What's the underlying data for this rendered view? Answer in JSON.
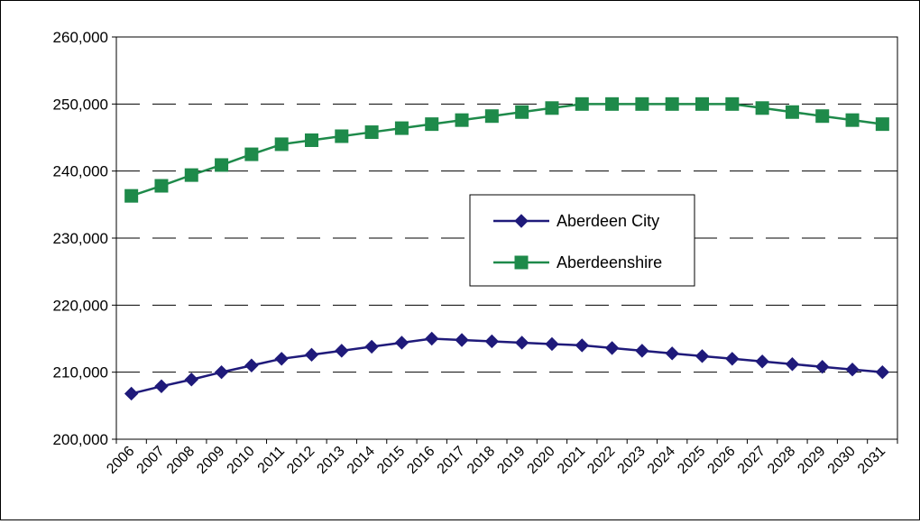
{
  "chart_data": {
    "type": "line",
    "title": "",
    "xlabel": "",
    "ylabel": "",
    "x": [
      "2006",
      "2007",
      "2008",
      "2009",
      "2010",
      "2011",
      "2012",
      "2013",
      "2014",
      "2015",
      "2016",
      "2017",
      "2018",
      "2019",
      "2020",
      "2021",
      "2022",
      "2023",
      "2024",
      "2025",
      "2026",
      "2027",
      "2028",
      "2029",
      "2030",
      "2031"
    ],
    "ylim": [
      200000,
      260000
    ],
    "yticks": [
      200000,
      210000,
      220000,
      230000,
      240000,
      250000,
      260000
    ],
    "ytick_labels": [
      "200,000",
      "210,000",
      "220,000",
      "230,000",
      "240,000",
      "250,000",
      "260,000"
    ],
    "grid": "horizontal dashed",
    "legend_position": "center-right",
    "series": [
      {
        "name": "Aberdeen City",
        "color": "#1f1a7a",
        "marker": "diamond",
        "values": [
          206800,
          207900,
          208900,
          210000,
          211000,
          212000,
          212600,
          213200,
          213800,
          214400,
          215000,
          214800,
          214600,
          214400,
          214200,
          214000,
          213600,
          213200,
          212800,
          212400,
          212000,
          211600,
          211200,
          210800,
          210400,
          210000
        ]
      },
      {
        "name": "Aberdeenshire",
        "color": "#1e8a4a",
        "marker": "square",
        "values": [
          236300,
          237800,
          239400,
          240900,
          242500,
          244000,
          244600,
          245200,
          245800,
          246400,
          247000,
          247600,
          248200,
          248800,
          249400,
          250000,
          250000,
          250000,
          250000,
          250000,
          250000,
          249400,
          248800,
          248200,
          247600,
          247000
        ]
      }
    ]
  }
}
